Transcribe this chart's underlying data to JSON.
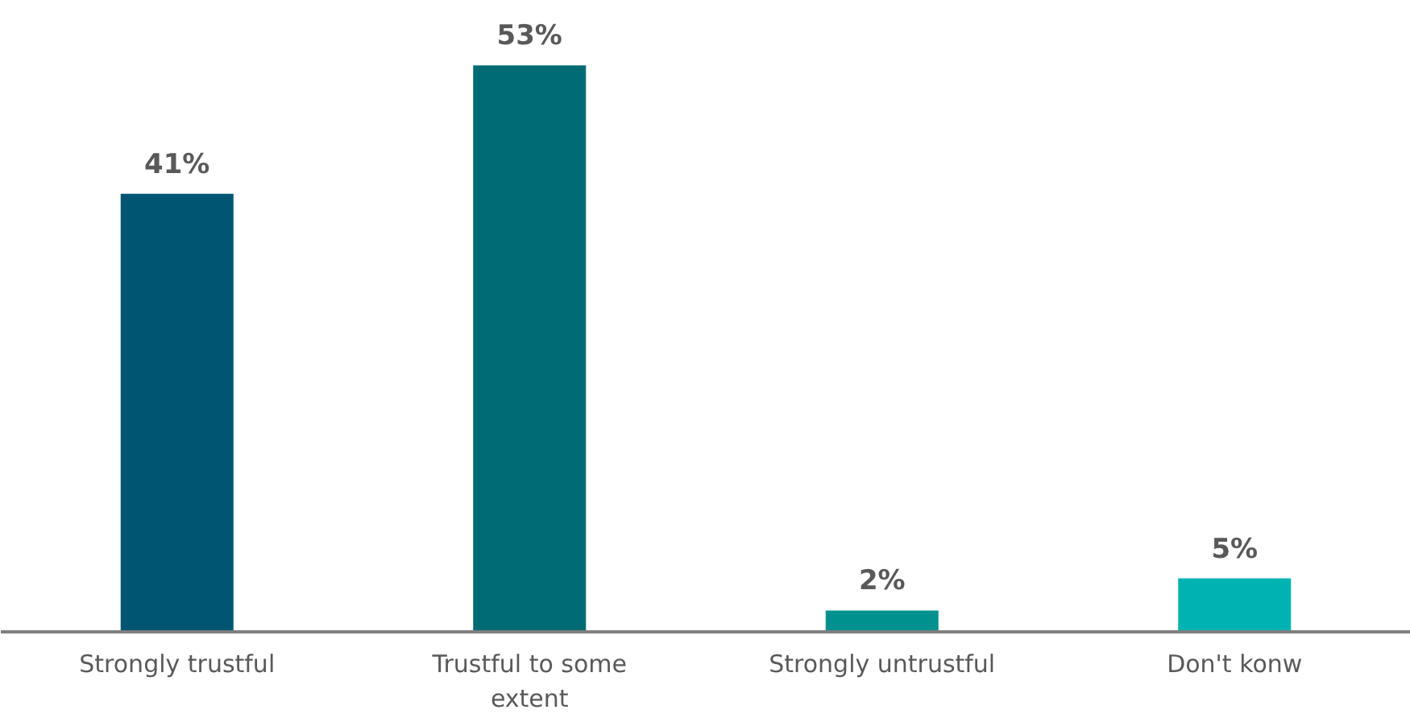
{
  "chart_data": {
    "type": "bar",
    "categories": [
      "Strongly trustful",
      "Trustful to some extent",
      "Strongly untrustful",
      "Don't konw"
    ],
    "values": [
      41,
      53,
      2,
      5
    ],
    "colors": [
      "#005573",
      "#006b72",
      "#00918f",
      "#00b2b2"
    ],
    "value_labels": [
      "41%",
      "53%",
      "2%",
      "5%"
    ]
  }
}
